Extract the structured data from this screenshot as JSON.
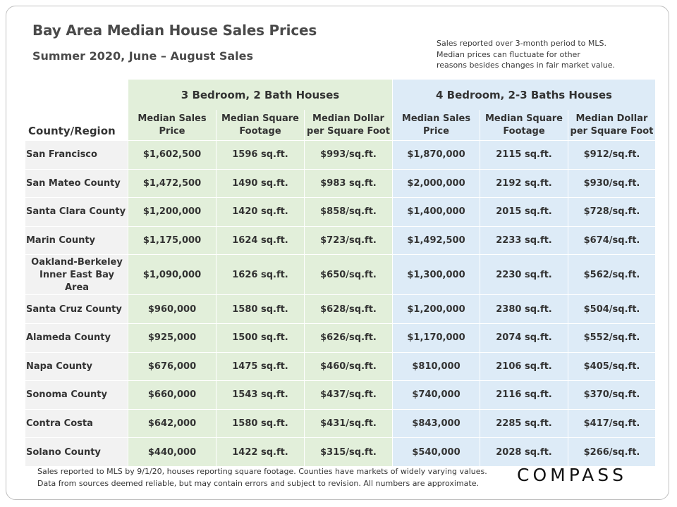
{
  "title": "Bay Area Median House Sales Prices",
  "subtitle": "Summer 2020, June – August Sales",
  "notes": [
    "Sales reported over 3-month period to MLS.",
    "Median prices can fluctuate for other",
    "reasons besides changes in fair market value."
  ],
  "groups": {
    "three_bed": "3 Bedroom, 2 Bath Houses",
    "four_bed": "4 Bedroom, 2-3 Baths Houses"
  },
  "headers": {
    "county": "County/Region",
    "median_price": [
      "Median Sales",
      "Price"
    ],
    "median_sqft": [
      "Median Square",
      "Footage"
    ],
    "median_dollar": [
      "Median Dollar",
      "per Square Foot"
    ]
  },
  "rows": [
    {
      "county": [
        "San Francisco"
      ],
      "b3": [
        "$1,602,500",
        "1596 sq.ft.",
        "$993/sq.ft."
      ],
      "b4": [
        "$1,870,000",
        "2115 sq.ft.",
        "$912/sq.ft."
      ]
    },
    {
      "county": [
        "San Mateo County"
      ],
      "b3": [
        "$1,472,500",
        "1490 sq.ft.",
        "$983 sq.ft."
      ],
      "b4": [
        "$2,000,000",
        "2192 sq.ft.",
        "$930/sq.ft."
      ]
    },
    {
      "county": [
        "Santa Clara County"
      ],
      "b3": [
        "$1,200,000",
        "1420 sq.ft.",
        "$858/sq.ft."
      ],
      "b4": [
        "$1,400,000",
        "2015 sq.ft.",
        "$728/sq.ft."
      ]
    },
    {
      "county": [
        "Marin County"
      ],
      "b3": [
        "$1,175,000",
        "1624 sq.ft.",
        "$723/sq.ft."
      ],
      "b4": [
        "$1,492,500",
        "2233 sq.ft.",
        "$674/sq.ft."
      ]
    },
    {
      "county": [
        "Oakland-Berkeley",
        "Inner East Bay Area"
      ],
      "b3": [
        "$1,090,000",
        "1626 sq.ft.",
        "$650/sq.ft."
      ],
      "b4": [
        "$1,300,000",
        "2230 sq.ft.",
        "$562/sq.ft."
      ]
    },
    {
      "county": [
        "Santa Cruz County"
      ],
      "b3": [
        "$960,000",
        "1580 sq.ft.",
        "$628/sq.ft."
      ],
      "b4": [
        "$1,200,000",
        "2380 sq.ft.",
        "$504/sq.ft."
      ]
    },
    {
      "county": [
        "Alameda County"
      ],
      "b3": [
        "$925,000",
        "1500 sq.ft.",
        "$626/sq.ft."
      ],
      "b4": [
        "$1,170,000",
        "2074 sq.ft.",
        "$552/sq.ft."
      ]
    },
    {
      "county": [
        "Napa County"
      ],
      "b3": [
        "$676,000",
        "1475 sq.ft.",
        "$460/sq.ft."
      ],
      "b4": [
        "$810,000",
        "2106 sq.ft.",
        "$405/sq.ft."
      ]
    },
    {
      "county": [
        "Sonoma County"
      ],
      "b3": [
        "$660,000",
        "1543 sq.ft.",
        "$437/sq.ft."
      ],
      "b4": [
        "$740,000",
        "2116 sq.ft.",
        "$370/sq.ft."
      ]
    },
    {
      "county": [
        "Contra Costa"
      ],
      "b3": [
        "$642,000",
        "1580 sq.ft.",
        "$431/sq.ft."
      ],
      "b4": [
        "$843,000",
        "2285 sq.ft.",
        "$417/sq.ft."
      ]
    },
    {
      "county": [
        "Solano County"
      ],
      "b3": [
        "$440,000",
        "1422 sq.ft.",
        "$315/sq.ft."
      ],
      "b4": [
        "$540,000",
        "2028 sq.ft.",
        "$266/sq.ft."
      ]
    }
  ],
  "footer": [
    "Sales reported to MLS by 9/1/20, houses reporting square footage. Counties have markets of widely varying values.",
    "Data from sources deemed reliable, but may contain errors and subject to revision.  All numbers are approximate."
  ],
  "logo": "COMPASS",
  "colors": {
    "green_group": "#e2efda",
    "blue_group": "#ddebf7",
    "county_bg": "#f2f2f2"
  }
}
